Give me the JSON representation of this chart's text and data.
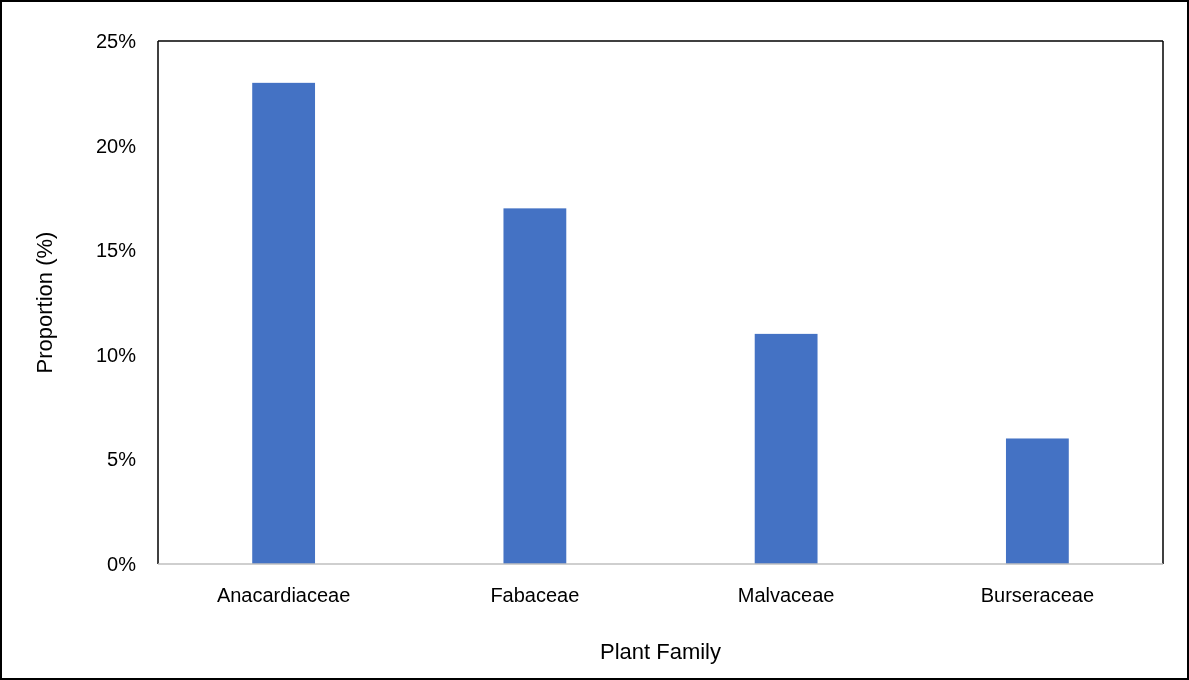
{
  "chart_data": {
    "type": "bar",
    "categories": [
      "Anacardiaceae",
      "Fabaceae",
      "Malvaceae",
      "Burseraceae"
    ],
    "values": [
      23,
      17,
      11,
      6
    ],
    "color": "#4472c4",
    "xlabel": "Plant Family",
    "ylabel": "Proportion (%)",
    "ylim": [
      0,
      25
    ],
    "yticks": [
      {
        "value": 0,
        "label": "0%"
      },
      {
        "value": 5,
        "label": "5%"
      },
      {
        "value": 10,
        "label": "10%"
      },
      {
        "value": 15,
        "label": "15%"
      },
      {
        "value": 20,
        "label": "20%"
      },
      {
        "value": 25,
        "label": "25%"
      }
    ],
    "grid": false
  }
}
